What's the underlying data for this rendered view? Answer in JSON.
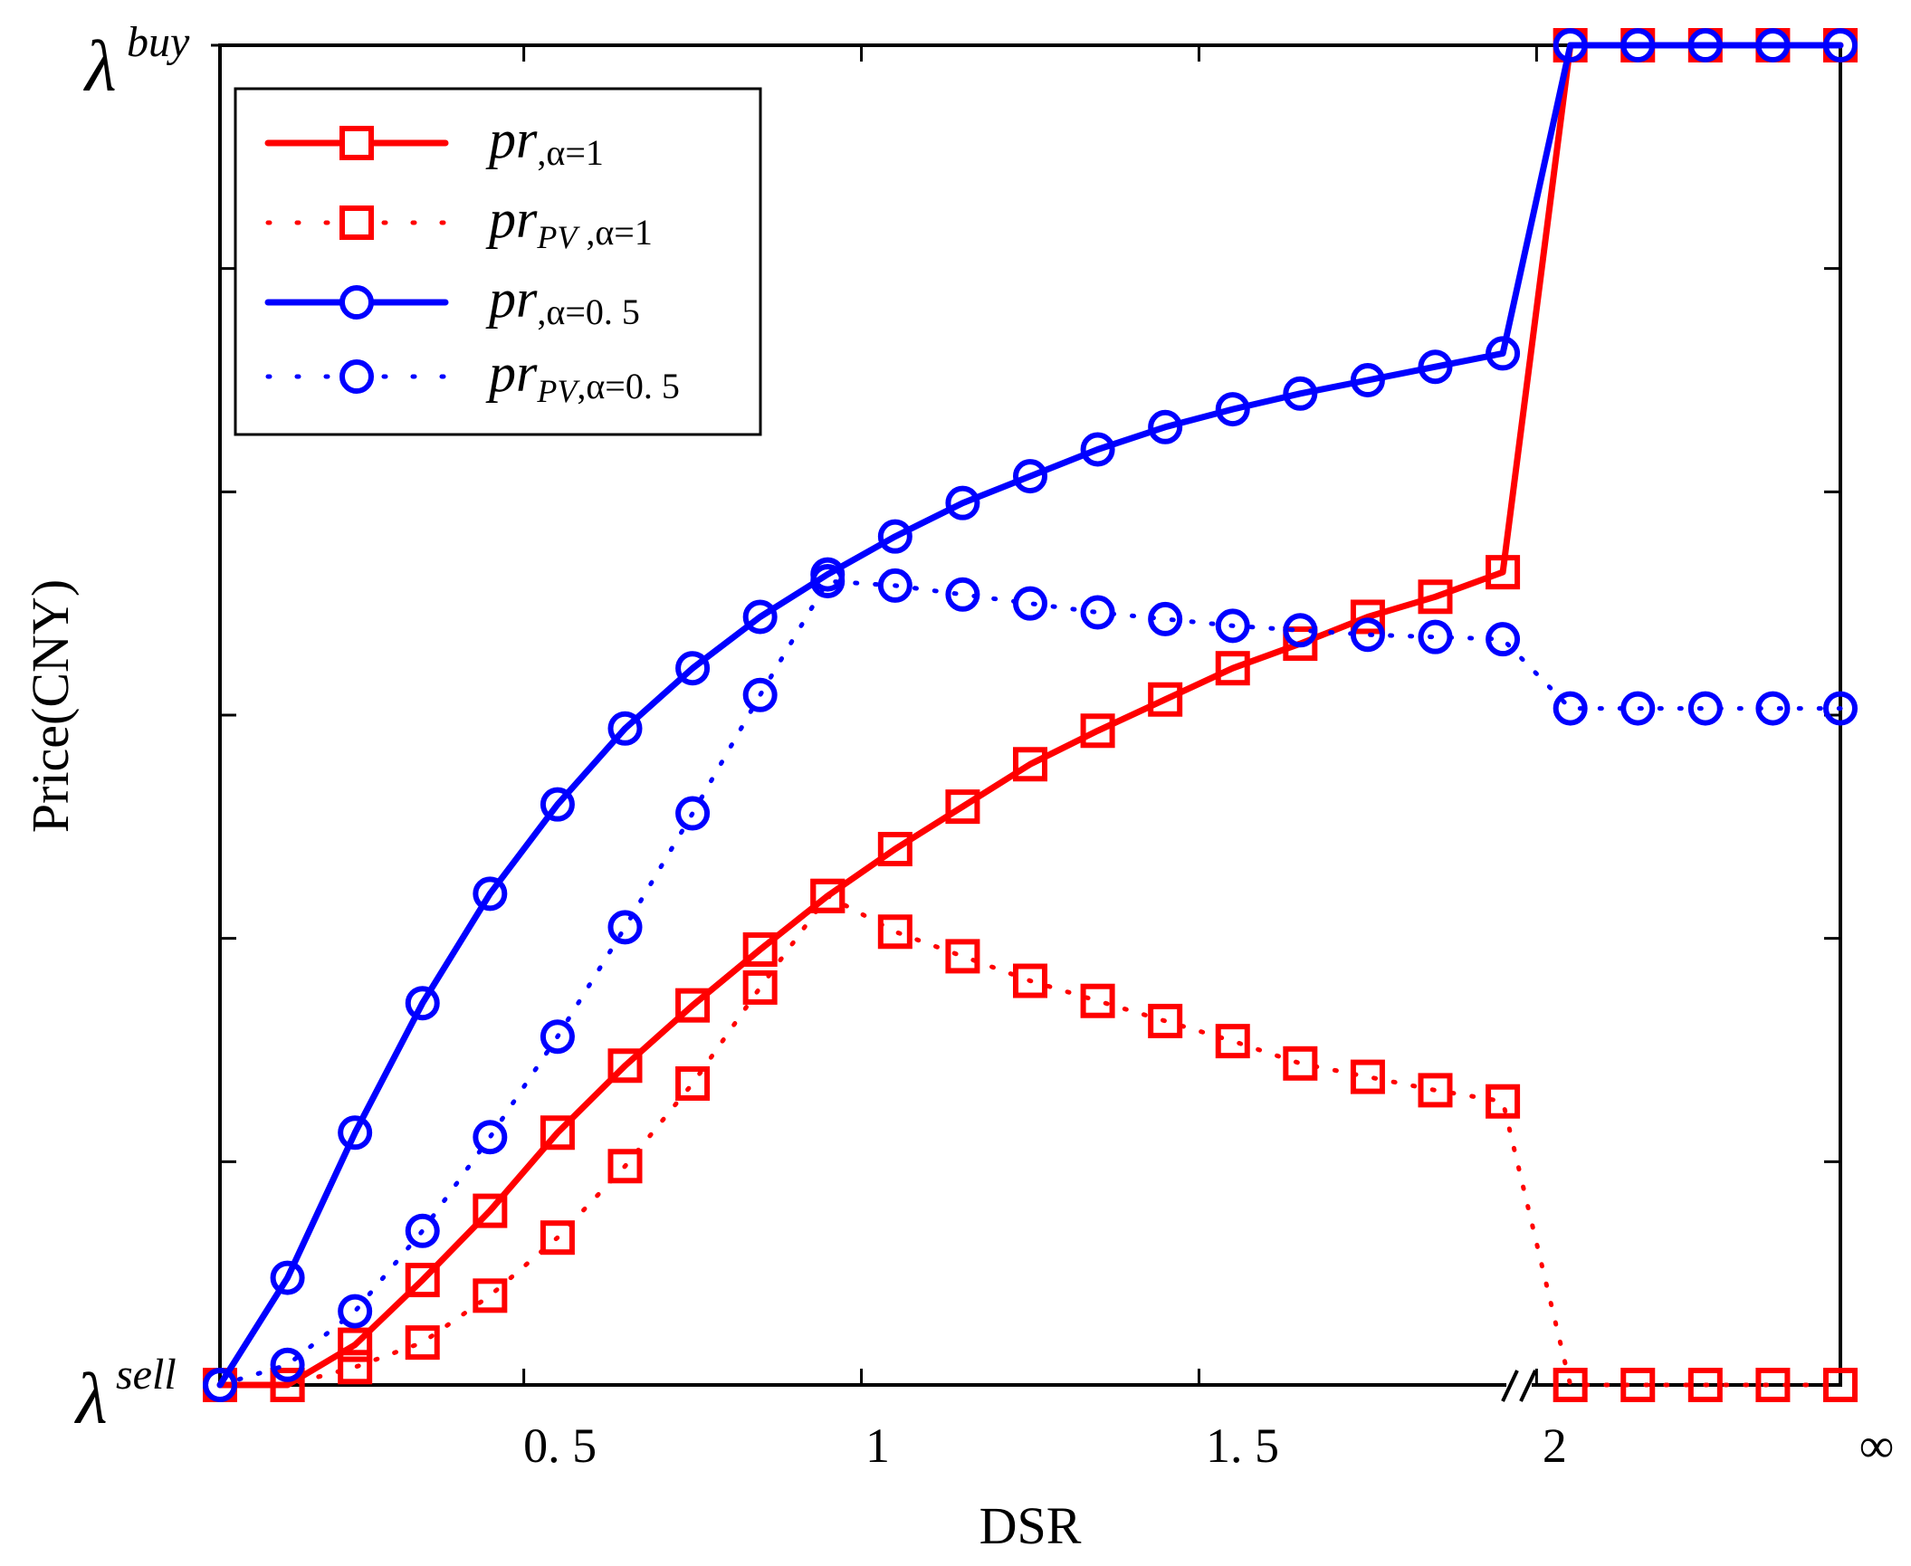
{
  "chart_data": {
    "type": "line",
    "title": "",
    "xlabel": "DSR",
    "ylabel": "Price(CNY)",
    "x_tick_labels": [
      "0. 5",
      "1",
      "1. 5",
      "2",
      "∞"
    ],
    "y_tick_labels": {
      "bottom": "λ",
      "bottom_sup": "sell",
      "top": "λ",
      "top_sup": "buy"
    },
    "x_ticks": [
      0.5,
      1.0,
      1.5,
      2.0
    ],
    "xlim": [
      0.05,
      2.45
    ],
    "ylim": [
      0,
      6
    ],
    "axis_break_at": 2.0,
    "grid": false,
    "legend_position": "top-left",
    "x": [
      0.05,
      0.15,
      0.25,
      0.35,
      0.45,
      0.55,
      0.65,
      0.75,
      0.85,
      0.95,
      1.05,
      1.15,
      1.25,
      1.35,
      1.45,
      1.55,
      1.65,
      1.75,
      1.85,
      1.95,
      2.05,
      2.15,
      2.25,
      2.35,
      2.45
    ],
    "series": [
      {
        "name": "pr,α=1",
        "legend_main": "pr",
        "legend_sub": "",
        "legend_suffix": ",α=1",
        "color": "#ff0000",
        "linestyle": "solid",
        "marker": "square",
        "values": [
          0.0,
          0.0,
          0.18,
          0.47,
          0.78,
          1.13,
          1.43,
          1.7,
          1.95,
          2.19,
          2.4,
          2.59,
          2.78,
          2.93,
          3.07,
          3.21,
          3.32,
          3.44,
          3.53,
          3.64,
          6.0,
          6.0,
          6.0,
          6.0,
          6.0
        ]
      },
      {
        "name": "prPV,α=1",
        "legend_main": "pr",
        "legend_sub": "PV",
        "legend_suffix": " ,α=1",
        "color": "#ff0000",
        "linestyle": "dotted",
        "marker": "square",
        "values": [
          0.0,
          0.0,
          0.08,
          0.19,
          0.4,
          0.66,
          0.98,
          1.35,
          1.78,
          2.19,
          2.03,
          1.92,
          1.81,
          1.72,
          1.63,
          1.54,
          1.44,
          1.38,
          1.32,
          1.27,
          0.0,
          0.0,
          0.0,
          0.0,
          0.0
        ]
      },
      {
        "name": "pr,α=0.5",
        "legend_main": "pr",
        "legend_sub": "",
        "legend_suffix": ",α=0. 5",
        "color": "#0000ff",
        "linestyle": "solid",
        "marker": "circle",
        "values": [
          0.0,
          0.48,
          1.13,
          1.71,
          2.2,
          2.6,
          2.94,
          3.21,
          3.44,
          3.63,
          3.8,
          3.95,
          4.07,
          4.19,
          4.29,
          4.37,
          4.44,
          4.5,
          4.56,
          4.62,
          6.0,
          6.0,
          6.0,
          6.0,
          6.0
        ]
      },
      {
        "name": "prPV,α=0.5",
        "legend_main": "pr",
        "legend_sub": "PV",
        "legend_suffix": ",α=0. 5",
        "color": "#0000ff",
        "linestyle": "dotted",
        "marker": "circle",
        "values": [
          0.0,
          0.09,
          0.33,
          0.69,
          1.11,
          1.56,
          2.05,
          2.56,
          3.09,
          3.6,
          3.58,
          3.54,
          3.5,
          3.46,
          3.43,
          3.4,
          3.38,
          3.36,
          3.35,
          3.34,
          3.03,
          3.03,
          3.03,
          3.03,
          3.03
        ]
      }
    ]
  }
}
